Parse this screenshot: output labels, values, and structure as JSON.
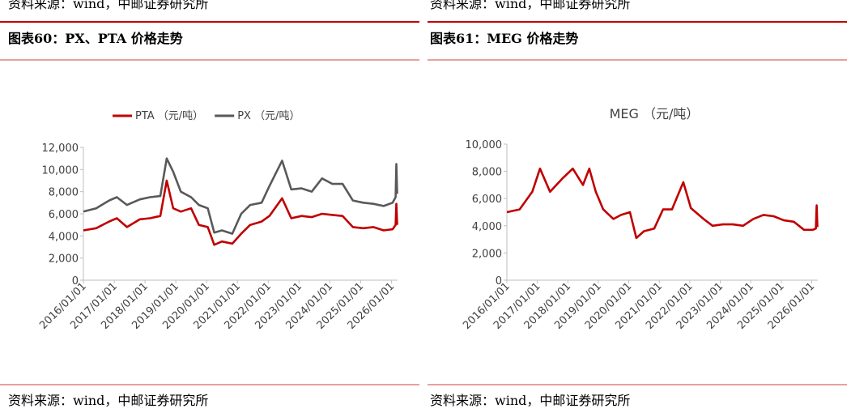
{
  "panels": [
    {
      "top_source": "资料来源：wind，中邮证券研究所",
      "caption": "图表60：PX、PTA 价格走势",
      "source": "资料来源：wind，中邮证券研究所"
    },
    {
      "top_source": "资料来源：wind，中邮证券研究所",
      "caption": "图表61：MEG 价格走势",
      "source": "资料来源：wind，中邮证券研究所"
    }
  ],
  "chart_data": [
    {
      "type": "line",
      "legend": "top",
      "x": [
        "2016/01/01",
        "2016/06/01",
        "2016/11/01",
        "2017/02/01",
        "2017/06/01",
        "2017/11/01",
        "2018/03/01",
        "2018/07/01",
        "2018/09/15",
        "2018/12/01",
        "2019/03/01",
        "2019/07/01",
        "2019/10/01",
        "2020/01/15",
        "2020/04/01",
        "2020/07/01",
        "2020/11/01",
        "2021/02/15",
        "2021/06/01",
        "2021/10/15",
        "2022/01/15",
        "2022/06/15",
        "2022/10/01",
        "2023/02/01",
        "2023/06/01",
        "2023/10/01",
        "2024/02/01",
        "2024/06/01",
        "2024/10/01",
        "2025/02/01",
        "2025/06/01",
        "2025/10/01",
        "2026/01/15",
        "2026/02/20",
        "2026/03/01",
        "2026/03/10"
      ],
      "series": [
        {
          "name": "PTA （元/吨）",
          "color": "#c00000",
          "values": [
            4500,
            4700,
            5300,
            5600,
            4800,
            5500,
            5600,
            5800,
            9000,
            6500,
            6200,
            6500,
            5000,
            4800,
            3200,
            3500,
            3300,
            4200,
            5000,
            5300,
            5800,
            7400,
            5600,
            5800,
            5700,
            6000,
            5900,
            5800,
            4800,
            4700,
            4800,
            4500,
            4600,
            5000,
            6900,
            5000
          ]
        },
        {
          "name": "PX （元/吨）",
          "color": "#595959",
          "values": [
            6200,
            6500,
            7200,
            7500,
            6800,
            7300,
            7500,
            7600,
            11000,
            9800,
            8000,
            7500,
            6800,
            6500,
            4300,
            4500,
            4200,
            6000,
            6800,
            7000,
            8500,
            10800,
            8200,
            8300,
            8000,
            9200,
            8700,
            8700,
            7200,
            7000,
            6900,
            6700,
            7000,
            7500,
            10500,
            7800
          ]
        }
      ],
      "xlim": [
        "2016/01/01",
        "2026/03/15"
      ],
      "xticks": [
        "2016/01/01",
        "2017/01/01",
        "2018/01/01",
        "2019/01/01",
        "2020/01/01",
        "2021/01/01",
        "2022/01/01",
        "2023/01/01",
        "2024/01/01",
        "2025/01/01",
        "2026/01/01"
      ],
      "ylim": [
        0,
        12000
      ],
      "yticks": [
        0,
        {
          "value": 2000,
          "label": "2,000"
        },
        {
          "value": 4000,
          "label": "4,000"
        },
        {
          "value": 6000,
          "label": "6,000"
        },
        {
          "value": 8000,
          "label": "8,000"
        },
        {
          "value": 10000,
          "label": "10,000"
        },
        {
          "value": 12000,
          "label": "12,000"
        }
      ]
    },
    {
      "type": "line",
      "title": "MEG （元/吨）",
      "x": [
        "2016/01/01",
        "2016/06/01",
        "2016/11/01",
        "2017/02/01",
        "2017/06/01",
        "2017/11/01",
        "2018/03/01",
        "2018/07/01",
        "2018/09/15",
        "2018/12/01",
        "2019/03/01",
        "2019/07/01",
        "2019/10/01",
        "2020/01/15",
        "2020/04/01",
        "2020/07/01",
        "2020/11/01",
        "2021/02/15",
        "2021/06/01",
        "2021/10/15",
        "2022/01/15",
        "2022/06/15",
        "2022/10/01",
        "2023/02/01",
        "2023/06/01",
        "2023/10/01",
        "2024/02/01",
        "2024/06/01",
        "2024/10/01",
        "2025/02/01",
        "2025/06/01",
        "2025/10/01",
        "2026/01/15",
        "2026/02/20",
        "2026/03/01",
        "2026/03/10"
      ],
      "series": [
        {
          "color": "#c00000",
          "values": [
            5000,
            5200,
            6500,
            8200,
            6500,
            7500,
            8200,
            7000,
            8200,
            6500,
            5200,
            4500,
            4800,
            5000,
            3100,
            3600,
            3800,
            5200,
            5200,
            7200,
            5300,
            4500,
            4000,
            4100,
            4100,
            4000,
            4500,
            4800,
            4700,
            4400,
            4300,
            3700,
            3700,
            3800,
            5500,
            3900
          ]
        }
      ],
      "xlim": [
        "2016/01/01",
        "2026/03/15"
      ],
      "xticks": [
        "2016/01/01",
        "2017/01/01",
        "2018/01/01",
        "2019/01/01",
        "2020/01/01",
        "2021/01/01",
        "2022/01/01",
        "2023/01/01",
        "2024/01/01",
        "2025/01/01",
        "2026/01/01"
      ],
      "ylim": [
        0,
        10000
      ],
      "yticks": [
        0,
        {
          "value": 2000,
          "label": "2,000"
        },
        {
          "value": 4000,
          "label": "4,000"
        },
        {
          "value": 6000,
          "label": "6,000"
        },
        {
          "value": 8000,
          "label": "8,000"
        },
        {
          "value": 10000,
          "label": "10,000"
        }
      ]
    }
  ]
}
